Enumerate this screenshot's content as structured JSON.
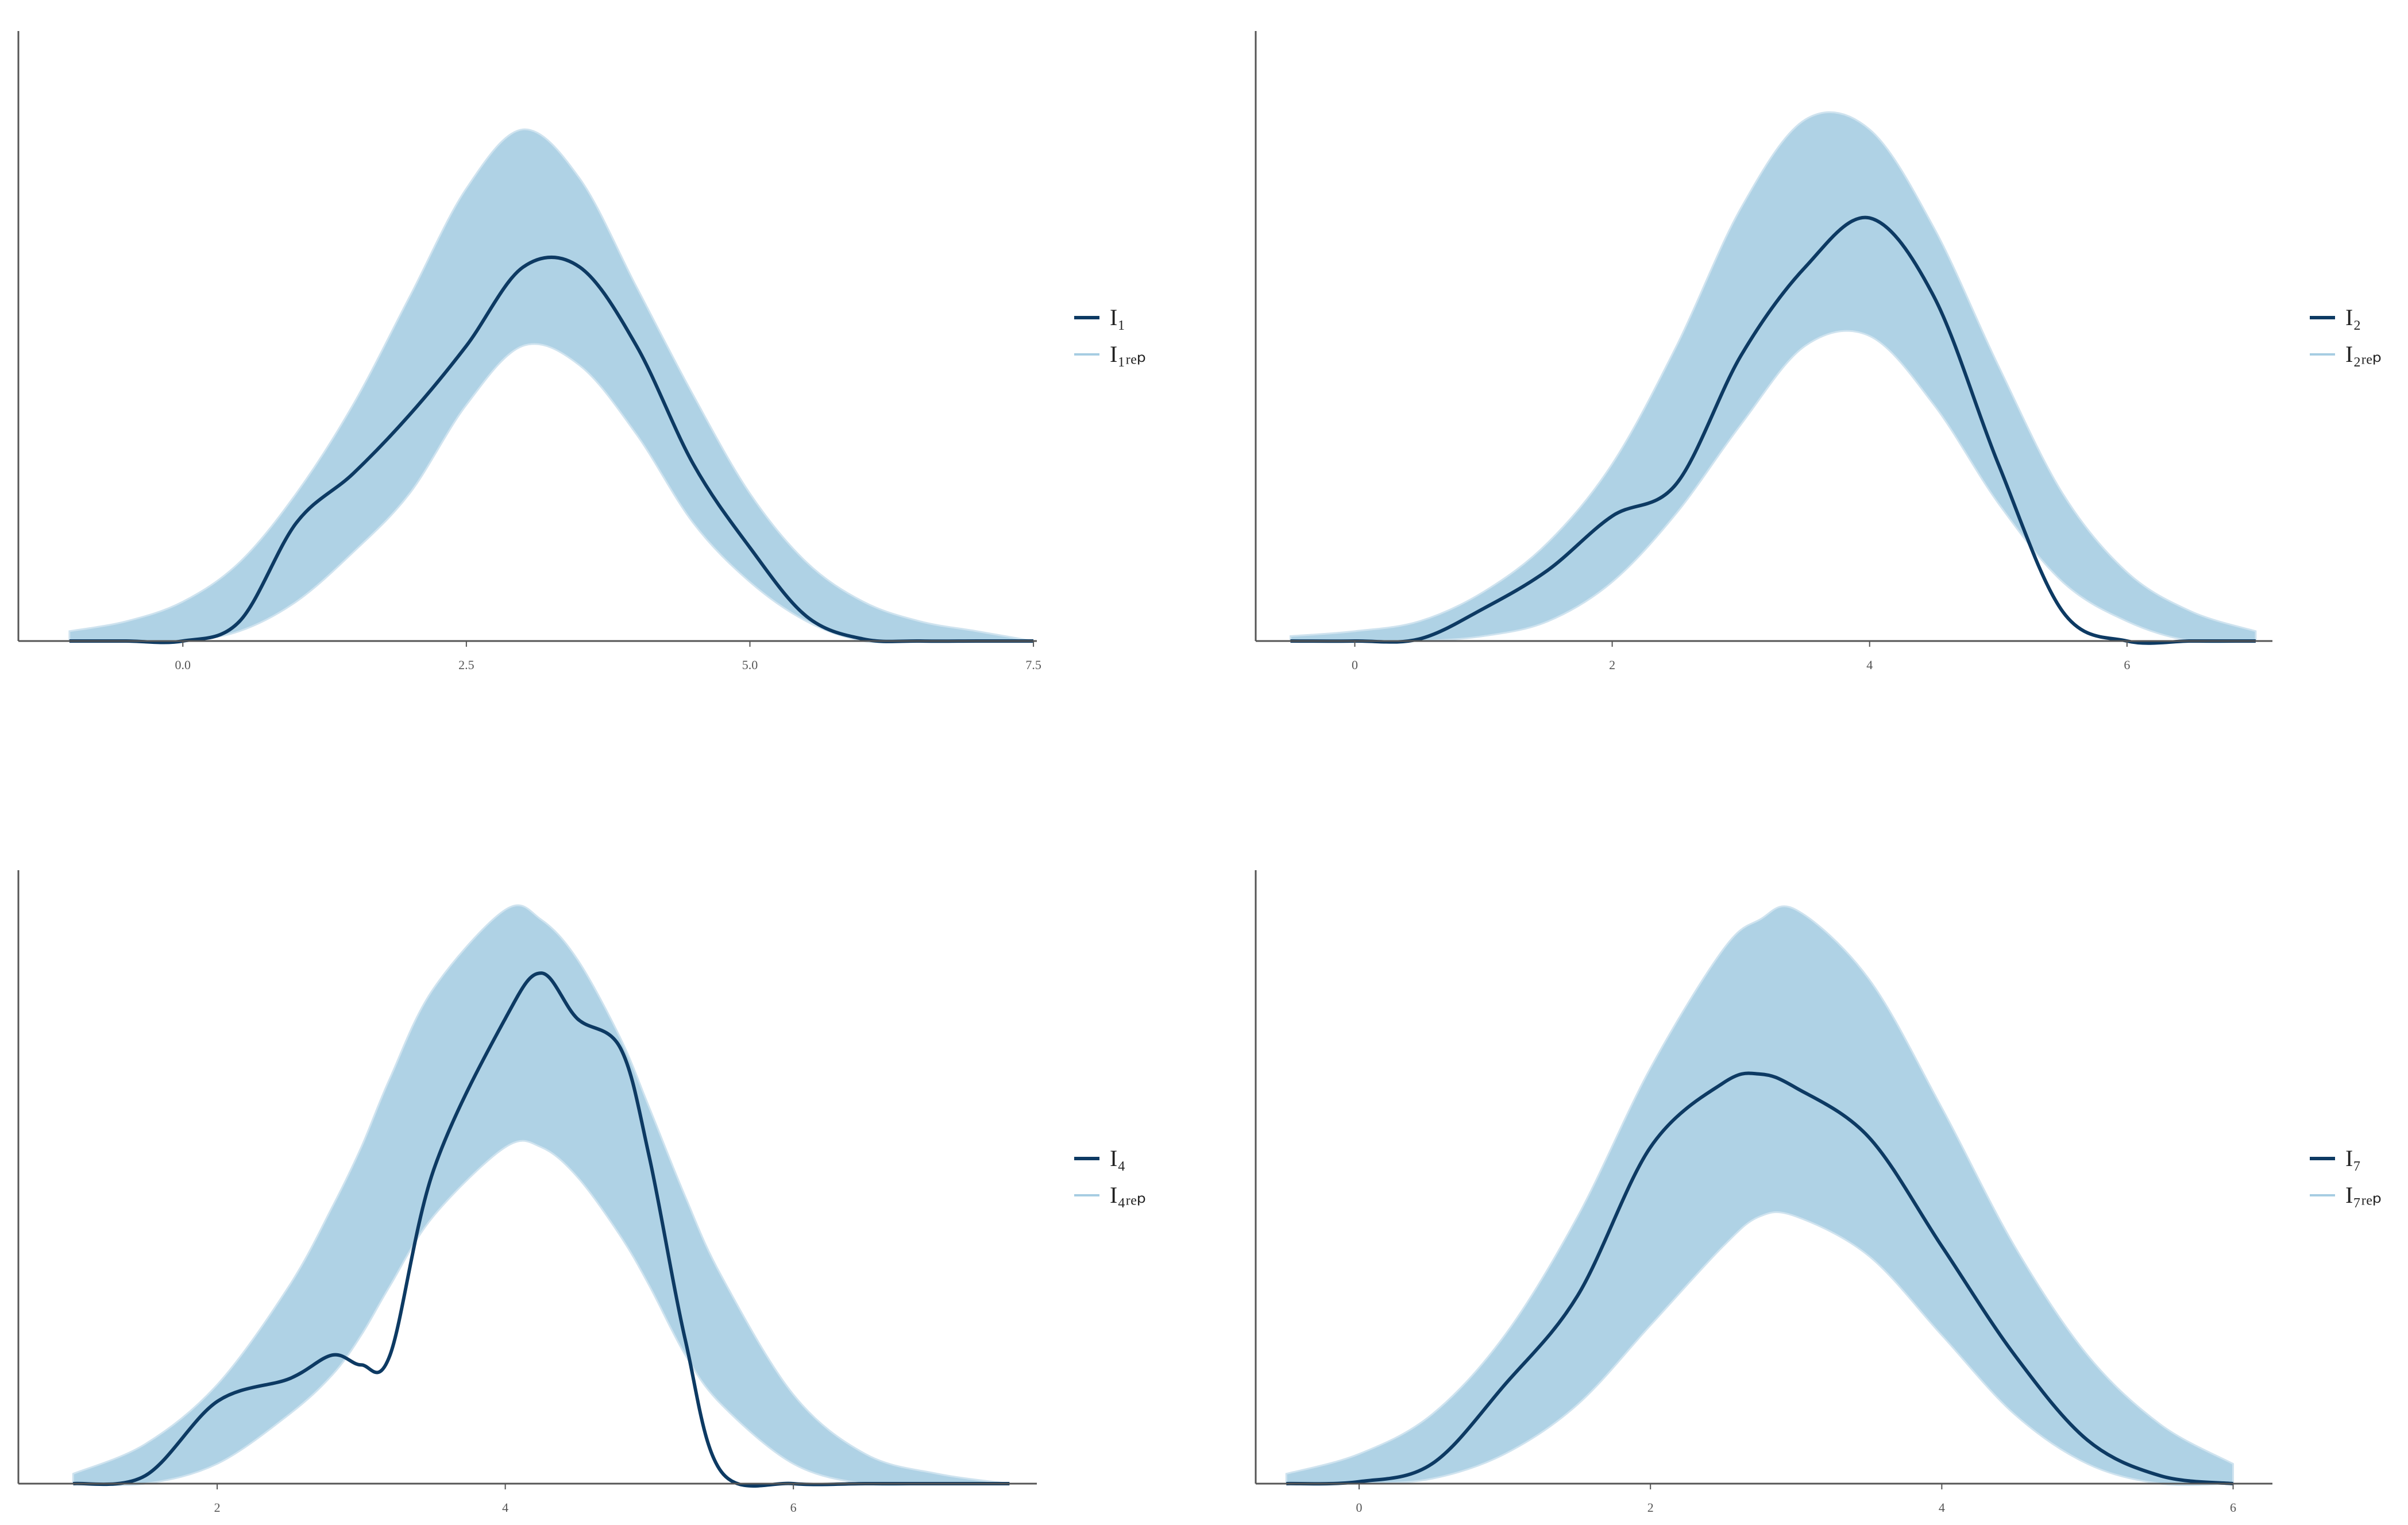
{
  "chart_data": [
    {
      "type": "density",
      "legend": "right",
      "xlim": [
        -1.45,
        7.53
      ],
      "ylim": [
        0,
        0.62
      ],
      "xticks": [
        {
          "value": 0,
          "label": "0.0"
        },
        {
          "value": 2.5,
          "label": "2.5"
        },
        {
          "value": 5,
          "label": "5.0"
        },
        {
          "value": 7.5,
          "label": "7.5"
        }
      ],
      "x": [
        -1,
        -0.5,
        0,
        0.5,
        1,
        1.5,
        2,
        2.5,
        3,
        3.5,
        4,
        4.5,
        5,
        5.5,
        6,
        6.5,
        7,
        7.5
      ],
      "series": [
        {
          "name": "I₁",
          "color": "#0d3a63",
          "values": [
            0,
            0,
            0,
            0.02,
            0.12,
            0.17,
            0.23,
            0.3,
            0.38,
            0.38,
            0.3,
            0.18,
            0.095,
            0.025,
            0.002,
            0,
            0,
            0
          ]
        },
        {
          "name": "I₁ᵣₑₚ",
          "color": "#a6cde2",
          "values": [
            0.01,
            0.02,
            0.04,
            0.08,
            0.15,
            0.24,
            0.35,
            0.46,
            0.52,
            0.47,
            0.36,
            0.25,
            0.15,
            0.08,
            0.04,
            0.02,
            0.01,
            0
          ],
          "lower": [
            0,
            0,
            0,
            0.01,
            0.04,
            0.09,
            0.15,
            0.24,
            0.3,
            0.28,
            0.21,
            0.12,
            0.06,
            0.02,
            0,
            0,
            0,
            0
          ]
        }
      ]
    },
    {
      "type": "density",
      "legend": "right",
      "xlim": [
        -0.77,
        7.13
      ],
      "ylim": [
        0,
        0.62
      ],
      "xticks": [
        0,
        2,
        4,
        6
      ],
      "x": [
        -0.5,
        0,
        0.5,
        1,
        1.5,
        2,
        2.5,
        3,
        3.5,
        4,
        4.5,
        5,
        5.5,
        6,
        6.5,
        7
      ],
      "series": [
        {
          "name": "I₂",
          "color": "#0d3a63",
          "values": [
            0,
            0,
            0.002,
            0.033,
            0.072,
            0.127,
            0.16,
            0.29,
            0.38,
            0.43,
            0.35,
            0.18,
            0.03,
            0,
            0,
            0
          ]
        },
        {
          "name": "I₂ᵣₑₚ",
          "color": "#a6cde2",
          "values": [
            0.005,
            0.01,
            0.02,
            0.05,
            0.1,
            0.18,
            0.3,
            0.44,
            0.53,
            0.52,
            0.42,
            0.28,
            0.15,
            0.07,
            0.03,
            0.01
          ],
          "lower": [
            0,
            0,
            0,
            0.005,
            0.02,
            0.06,
            0.13,
            0.22,
            0.3,
            0.31,
            0.24,
            0.14,
            0.06,
            0.02,
            0,
            0
          ]
        }
      ]
    },
    {
      "type": "density",
      "legend": "right",
      "xlim": [
        0.62,
        7.69
      ],
      "ylim": [
        0,
        0.62
      ],
      "xticks": [
        2,
        4,
        6
      ],
      "x": [
        1,
        1.5,
        2,
        2.5,
        2.8,
        3,
        3.2,
        3.5,
        4,
        4.25,
        4.5,
        4.8,
        5,
        5.25,
        5.5,
        6,
        6.5,
        7,
        7.5
      ],
      "series": [
        {
          "name": "I₄",
          "color": "#0d3a63",
          "values": [
            0,
            0.008,
            0.083,
            0.106,
            0.13,
            0.12,
            0.13,
            0.316,
            0.47,
            0.516,
            0.47,
            0.44,
            0.33,
            0.145,
            0.012,
            0,
            0,
            0,
            0
          ]
        },
        {
          "name": "I₄ᵣₑₚ",
          "color": "#a6cde2",
          "values": [
            0.01,
            0.04,
            0.1,
            0.2,
            0.28,
            0.34,
            0.41,
            0.5,
            0.58,
            0.57,
            0.53,
            0.45,
            0.38,
            0.29,
            0.21,
            0.09,
            0.03,
            0.01,
            0
          ],
          "lower": [
            0,
            0,
            0.02,
            0.07,
            0.11,
            0.15,
            0.2,
            0.27,
            0.34,
            0.34,
            0.31,
            0.25,
            0.2,
            0.13,
            0.08,
            0.02,
            0,
            0,
            0
          ]
        }
      ]
    },
    {
      "type": "density",
      "legend": "right",
      "xlim": [
        -0.71,
        6.27
      ],
      "ylim": [
        0,
        0.62
      ],
      "xticks": [
        0,
        2,
        4,
        6
      ],
      "x": [
        -0.5,
        0,
        0.5,
        1,
        1.5,
        2,
        2.5,
        2.75,
        3,
        3.5,
        4,
        4.5,
        5,
        5.5,
        6
      ],
      "series": [
        {
          "name": "I₇",
          "color": "#0d3a63",
          "values": [
            0,
            0.002,
            0.02,
            0.1,
            0.19,
            0.34,
            0.405,
            0.414,
            0.4,
            0.35,
            0.24,
            0.13,
            0.044,
            0.008,
            0
          ]
        },
        {
          "name": "I₇ᵣₑₚ",
          "color": "#a6cde2",
          "values": [
            0.01,
            0.03,
            0.07,
            0.15,
            0.27,
            0.42,
            0.54,
            0.57,
            0.58,
            0.51,
            0.38,
            0.24,
            0.13,
            0.06,
            0.02
          ],
          "lower": [
            0,
            0,
            0.005,
            0.03,
            0.08,
            0.16,
            0.24,
            0.27,
            0.27,
            0.23,
            0.15,
            0.07,
            0.02,
            0,
            0
          ]
        }
      ]
    }
  ]
}
